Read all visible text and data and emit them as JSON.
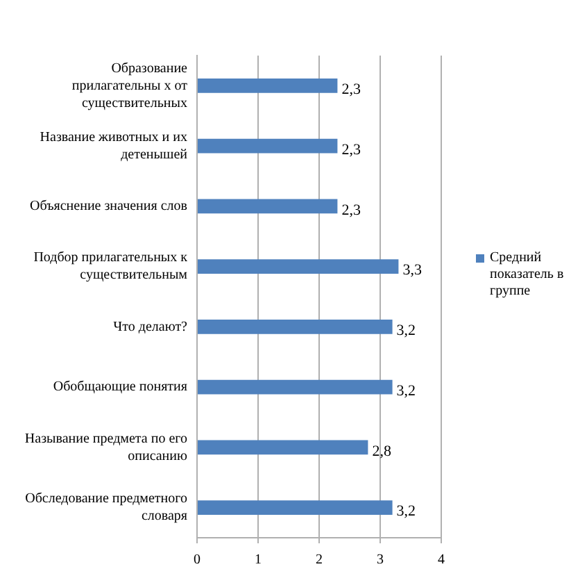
{
  "chart_data": {
    "type": "bar",
    "orientation": "horizontal",
    "categories": [
      "Образование прилагательны х от существительных",
      "Название животных и их детенышей",
      "Объяснение значения слов",
      "Подбор прилагательных к существительным",
      "Что делают?",
      "Обобщающие понятия",
      "Называние предмета по его описанию",
      "Обследование предметного словаря"
    ],
    "series": [
      {
        "name": "Средний показатель в группе",
        "color": "#4f81bd",
        "values": [
          2.3,
          2.3,
          2.3,
          3.3,
          3.2,
          3.2,
          2.8,
          3.2
        ],
        "value_labels": [
          "2,3",
          "2,3",
          "2,3",
          "3,3",
          "3,2",
          "3,2",
          "2,8",
          "3,2"
        ]
      }
    ],
    "xlim": [
      0,
      4
    ],
    "xticks": [
      0,
      1,
      2,
      3,
      4
    ],
    "grid": "x",
    "legend": "right"
  }
}
